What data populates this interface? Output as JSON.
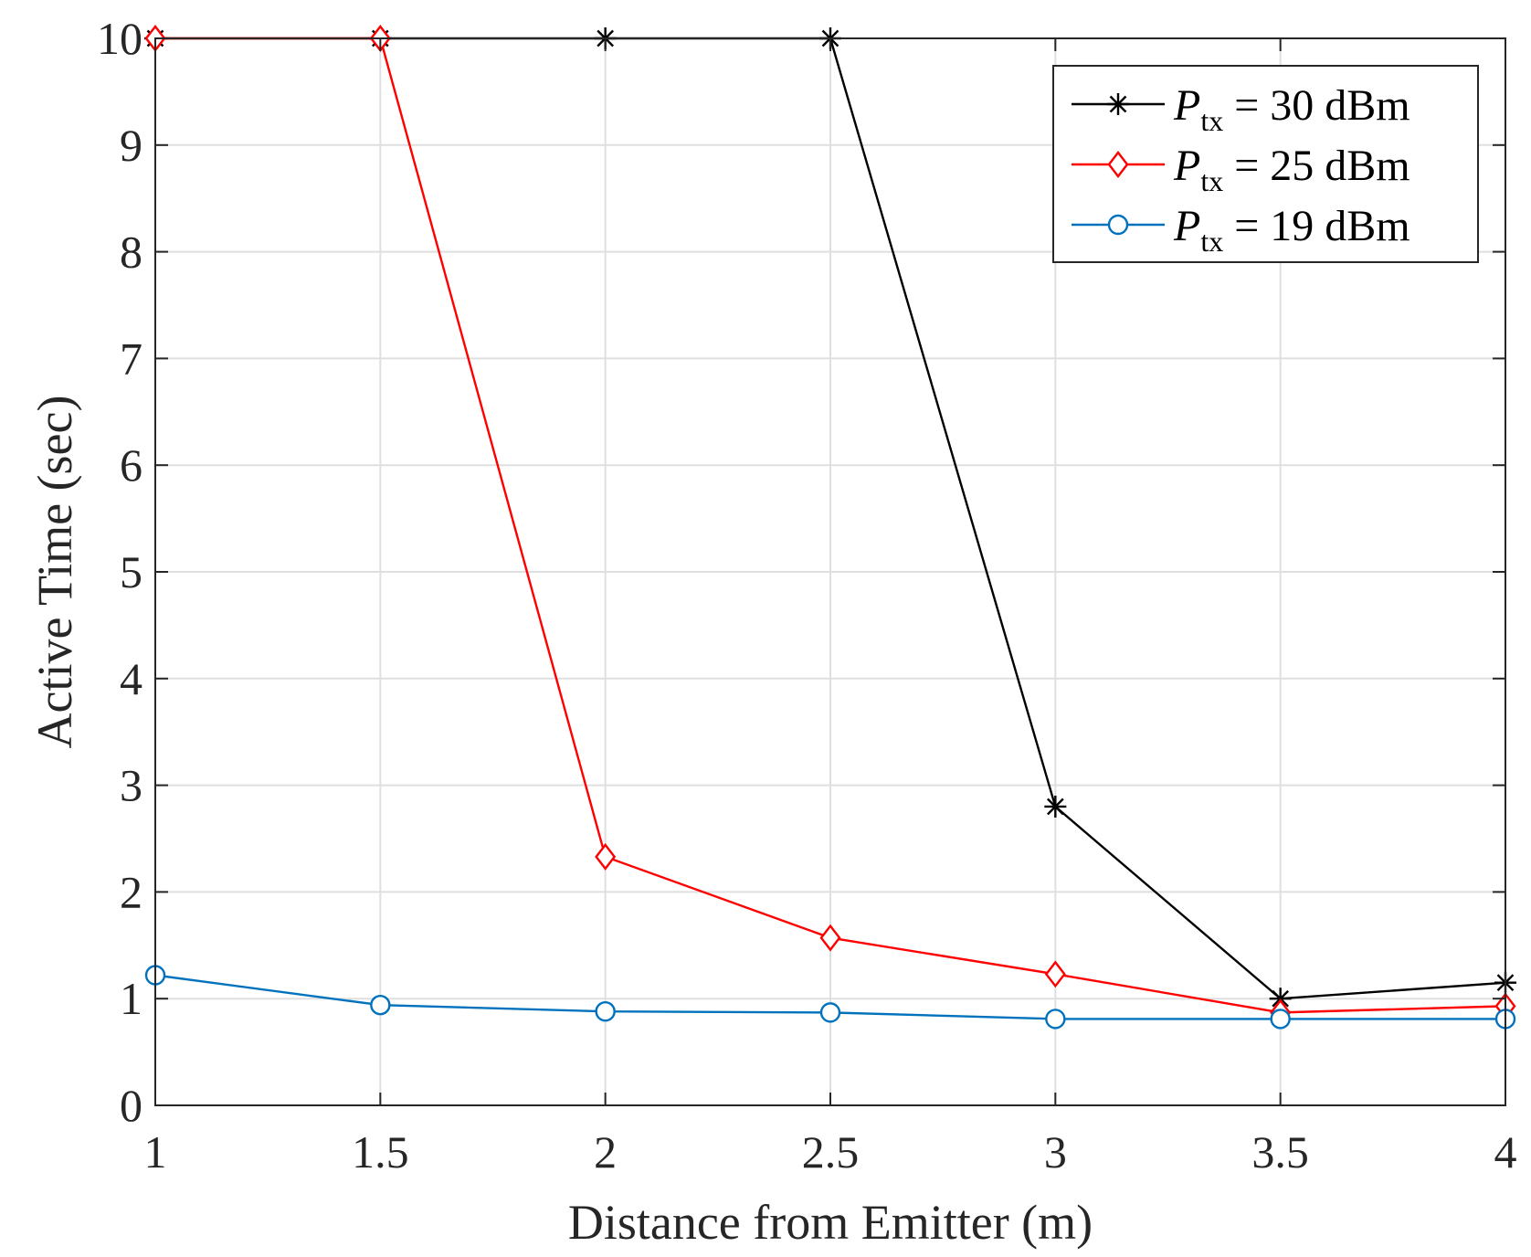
{
  "chart_data": {
    "type": "line",
    "title": "",
    "xlabel": "Distance from Emitter (m)",
    "ylabel": "Active Time (sec)",
    "xlim": [
      1,
      4
    ],
    "ylim": [
      0,
      10
    ],
    "grid": true,
    "legend_position": "top-right",
    "x": [
      1,
      1.5,
      2,
      2.5,
      3,
      3.5,
      4
    ],
    "xticks": [
      "1",
      "1.5",
      "2",
      "2.5",
      "3",
      "3.5",
      "4"
    ],
    "yticks": [
      "0",
      "1",
      "2",
      "3",
      "4",
      "5",
      "6",
      "7",
      "8",
      "9",
      "10"
    ],
    "series": [
      {
        "name": "P_tx = 30 dBm",
        "legend_var": "P",
        "legend_sub": "tx",
        "legend_rest": " = 30 dBm",
        "color": "#000000",
        "marker": "asterisk",
        "values": [
          10,
          10,
          10,
          10,
          2.8,
          1.0,
          1.15
        ]
      },
      {
        "name": "P_tx = 25 dBm",
        "legend_var": "P",
        "legend_sub": "tx",
        "legend_rest": " = 25 dBm",
        "color": "#ff0000",
        "marker": "diamond",
        "values": [
          10,
          10,
          2.33,
          1.57,
          1.23,
          0.87,
          0.93
        ]
      },
      {
        "name": "P_tx = 19 dBm",
        "legend_var": "P",
        "legend_sub": "tx",
        "legend_rest": " = 19 dBm",
        "color": "#0072bd",
        "marker": "circle",
        "values": [
          1.22,
          0.94,
          0.88,
          0.87,
          0.81,
          0.81,
          0.81
        ]
      }
    ]
  }
}
